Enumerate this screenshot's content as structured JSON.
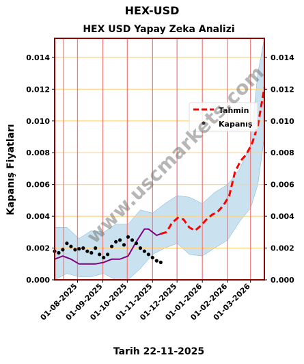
{
  "suptitle": "HEX-USD",
  "footer": "Tarih 22-11-2025",
  "watermark": "www.uscmarkets.com",
  "chart_data": {
    "type": "line",
    "title": "HEX USD Yapay Zeka Analizi",
    "xlabel": "",
    "ylabel": "Kapanış Fiyatları",
    "x_range": [
      "2025-07-04",
      "2026-03-18"
    ],
    "ylim": [
      0,
      0.0152
    ],
    "yticks": [
      "0.000",
      "0.002",
      "0.004",
      "0.006",
      "0.008",
      "0.010",
      "0.012",
      "0.014"
    ],
    "xticks": [
      "01-08-2025",
      "01-09-2025",
      "01-10-2025",
      "01-11-2025",
      "01-12-2025",
      "01-01-2026",
      "01-02-2026",
      "01-03-2026"
    ],
    "grid": true,
    "legend": "upper-right",
    "colors": {
      "kapanis": "#000000",
      "tahmin": "#ff0000",
      "average": "#800080",
      "band": "#9ecae1",
      "vgrid": "#f08080",
      "hgrid": "#ffd27f",
      "frame": "#8b0000"
    },
    "series": [
      {
        "name": "Kapanış",
        "style": "dots",
        "x": [
          "2025-07-04",
          "2025-07-09",
          "2025-07-14",
          "2025-07-19",
          "2025-07-24",
          "2025-07-29",
          "2025-08-03",
          "2025-08-08",
          "2025-08-13",
          "2025-08-18",
          "2025-08-23",
          "2025-08-28",
          "2025-09-02",
          "2025-09-07",
          "2025-09-12",
          "2025-09-17",
          "2025-09-22",
          "2025-09-27",
          "2025-10-02",
          "2025-10-07",
          "2025-10-12",
          "2025-10-17",
          "2025-10-22",
          "2025-10-27",
          "2025-11-01",
          "2025-11-06",
          "2025-11-11"
        ],
        "values": [
          0.0018,
          0.0017,
          0.0019,
          0.0023,
          0.0021,
          0.0019,
          0.00195,
          0.002,
          0.0018,
          0.0017,
          0.002,
          0.0016,
          0.0014,
          0.0016,
          0.0021,
          0.0024,
          0.0025,
          0.0022,
          0.0027,
          0.0025,
          0.0023,
          0.002,
          0.0018,
          0.0016,
          0.0014,
          0.0012,
          0.0011
        ]
      },
      {
        "name": "Tahmin",
        "style": "dashed",
        "x": [
          "2025-11-11",
          "2025-11-18",
          "2025-11-25",
          "2025-12-02",
          "2025-12-09",
          "2025-12-16",
          "2025-12-23",
          "2025-12-30",
          "2026-01-06",
          "2026-01-13",
          "2026-01-20",
          "2026-01-27",
          "2026-02-03",
          "2026-02-10",
          "2026-02-17",
          "2026-02-24",
          "2026-03-03",
          "2026-03-10",
          "2026-03-18"
        ],
        "values": [
          0.0029,
          0.003,
          0.0036,
          0.0039,
          0.0038,
          0.0033,
          0.0031,
          0.0034,
          0.0038,
          0.0041,
          0.0043,
          0.0047,
          0.0053,
          0.0068,
          0.0075,
          0.0079,
          0.0086,
          0.0097,
          0.0121
        ]
      }
    ],
    "average": {
      "x": [
        "2025-07-04",
        "2025-07-14",
        "2025-07-24",
        "2025-08-03",
        "2025-08-13",
        "2025-08-23",
        "2025-09-02",
        "2025-09-12",
        "2025-09-22",
        "2025-10-02",
        "2025-10-12",
        "2025-10-22",
        "2025-10-27",
        "2025-11-01",
        "2025-11-06",
        "2025-11-11"
      ],
      "values": [
        0.0013,
        0.0015,
        0.0013,
        0.001,
        0.001,
        0.001,
        0.0011,
        0.0013,
        0.0013,
        0.0015,
        0.0024,
        0.0032,
        0.0032,
        0.003,
        0.0028,
        0.0029
      ]
    },
    "band": {
      "x": [
        "2025-07-04",
        "2025-07-19",
        "2025-08-03",
        "2025-08-18",
        "2025-09-02",
        "2025-09-17",
        "2025-10-02",
        "2025-10-17",
        "2025-11-01",
        "2025-11-16",
        "2025-12-01",
        "2025-12-16",
        "2026-01-01",
        "2026-01-16",
        "2026-02-01",
        "2026-02-16",
        "2026-03-01",
        "2026-03-10",
        "2026-03-18"
      ],
      "upper": [
        0.0033,
        0.0033,
        0.0026,
        0.0031,
        0.003,
        0.0035,
        0.0035,
        0.0044,
        0.0042,
        0.0048,
        0.0053,
        0.0052,
        0.0048,
        0.0055,
        0.006,
        0.007,
        0.0085,
        0.013,
        0.0152
      ],
      "lower": [
        0.0,
        0.0004,
        0.0002,
        0.0002,
        0.0004,
        0.0,
        0.0,
        0.0007,
        0.0016,
        0.002,
        0.0023,
        0.0016,
        0.0015,
        0.002,
        0.0025,
        0.0037,
        0.0045,
        0.006,
        0.009
      ]
    }
  }
}
